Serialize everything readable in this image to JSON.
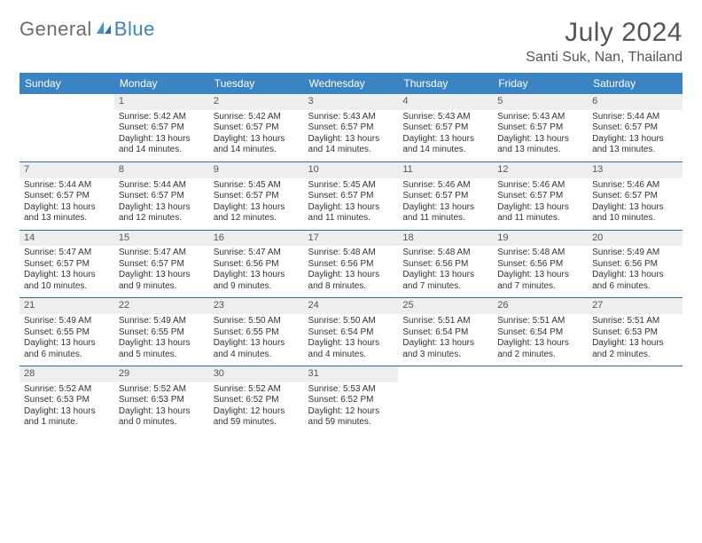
{
  "brand": {
    "part1": "General",
    "part2": "Blue"
  },
  "colors": {
    "header_bg": "#3b84c4",
    "header_text": "#ffffff",
    "rule": "#2f6da6",
    "daynum_bg": "#eeeeee",
    "text": "#333333",
    "muted": "#555555",
    "brand_gray": "#6d6d6d",
    "brand_blue": "#3b84c4",
    "page_bg": "#ffffff"
  },
  "title": {
    "month": "July 2024",
    "location": "Santi Suk, Nan, Thailand"
  },
  "weekdays": [
    "Sunday",
    "Monday",
    "Tuesday",
    "Wednesday",
    "Thursday",
    "Friday",
    "Saturday"
  ],
  "weeks": [
    [
      null,
      {
        "day": "1",
        "sunrise": "Sunrise: 5:42 AM",
        "sunset": "Sunset: 6:57 PM",
        "daylight1": "Daylight: 13 hours",
        "daylight2": "and 14 minutes."
      },
      {
        "day": "2",
        "sunrise": "Sunrise: 5:42 AM",
        "sunset": "Sunset: 6:57 PM",
        "daylight1": "Daylight: 13 hours",
        "daylight2": "and 14 minutes."
      },
      {
        "day": "3",
        "sunrise": "Sunrise: 5:43 AM",
        "sunset": "Sunset: 6:57 PM",
        "daylight1": "Daylight: 13 hours",
        "daylight2": "and 14 minutes."
      },
      {
        "day": "4",
        "sunrise": "Sunrise: 5:43 AM",
        "sunset": "Sunset: 6:57 PM",
        "daylight1": "Daylight: 13 hours",
        "daylight2": "and 14 minutes."
      },
      {
        "day": "5",
        "sunrise": "Sunrise: 5:43 AM",
        "sunset": "Sunset: 6:57 PM",
        "daylight1": "Daylight: 13 hours",
        "daylight2": "and 13 minutes."
      },
      {
        "day": "6",
        "sunrise": "Sunrise: 5:44 AM",
        "sunset": "Sunset: 6:57 PM",
        "daylight1": "Daylight: 13 hours",
        "daylight2": "and 13 minutes."
      }
    ],
    [
      {
        "day": "7",
        "sunrise": "Sunrise: 5:44 AM",
        "sunset": "Sunset: 6:57 PM",
        "daylight1": "Daylight: 13 hours",
        "daylight2": "and 13 minutes."
      },
      {
        "day": "8",
        "sunrise": "Sunrise: 5:44 AM",
        "sunset": "Sunset: 6:57 PM",
        "daylight1": "Daylight: 13 hours",
        "daylight2": "and 12 minutes."
      },
      {
        "day": "9",
        "sunrise": "Sunrise: 5:45 AM",
        "sunset": "Sunset: 6:57 PM",
        "daylight1": "Daylight: 13 hours",
        "daylight2": "and 12 minutes."
      },
      {
        "day": "10",
        "sunrise": "Sunrise: 5:45 AM",
        "sunset": "Sunset: 6:57 PM",
        "daylight1": "Daylight: 13 hours",
        "daylight2": "and 11 minutes."
      },
      {
        "day": "11",
        "sunrise": "Sunrise: 5:46 AM",
        "sunset": "Sunset: 6:57 PM",
        "daylight1": "Daylight: 13 hours",
        "daylight2": "and 11 minutes."
      },
      {
        "day": "12",
        "sunrise": "Sunrise: 5:46 AM",
        "sunset": "Sunset: 6:57 PM",
        "daylight1": "Daylight: 13 hours",
        "daylight2": "and 11 minutes."
      },
      {
        "day": "13",
        "sunrise": "Sunrise: 5:46 AM",
        "sunset": "Sunset: 6:57 PM",
        "daylight1": "Daylight: 13 hours",
        "daylight2": "and 10 minutes."
      }
    ],
    [
      {
        "day": "14",
        "sunrise": "Sunrise: 5:47 AM",
        "sunset": "Sunset: 6:57 PM",
        "daylight1": "Daylight: 13 hours",
        "daylight2": "and 10 minutes."
      },
      {
        "day": "15",
        "sunrise": "Sunrise: 5:47 AM",
        "sunset": "Sunset: 6:57 PM",
        "daylight1": "Daylight: 13 hours",
        "daylight2": "and 9 minutes."
      },
      {
        "day": "16",
        "sunrise": "Sunrise: 5:47 AM",
        "sunset": "Sunset: 6:56 PM",
        "daylight1": "Daylight: 13 hours",
        "daylight2": "and 9 minutes."
      },
      {
        "day": "17",
        "sunrise": "Sunrise: 5:48 AM",
        "sunset": "Sunset: 6:56 PM",
        "daylight1": "Daylight: 13 hours",
        "daylight2": "and 8 minutes."
      },
      {
        "day": "18",
        "sunrise": "Sunrise: 5:48 AM",
        "sunset": "Sunset: 6:56 PM",
        "daylight1": "Daylight: 13 hours",
        "daylight2": "and 7 minutes."
      },
      {
        "day": "19",
        "sunrise": "Sunrise: 5:48 AM",
        "sunset": "Sunset: 6:56 PM",
        "daylight1": "Daylight: 13 hours",
        "daylight2": "and 7 minutes."
      },
      {
        "day": "20",
        "sunrise": "Sunrise: 5:49 AM",
        "sunset": "Sunset: 6:56 PM",
        "daylight1": "Daylight: 13 hours",
        "daylight2": "and 6 minutes."
      }
    ],
    [
      {
        "day": "21",
        "sunrise": "Sunrise: 5:49 AM",
        "sunset": "Sunset: 6:55 PM",
        "daylight1": "Daylight: 13 hours",
        "daylight2": "and 6 minutes."
      },
      {
        "day": "22",
        "sunrise": "Sunrise: 5:49 AM",
        "sunset": "Sunset: 6:55 PM",
        "daylight1": "Daylight: 13 hours",
        "daylight2": "and 5 minutes."
      },
      {
        "day": "23",
        "sunrise": "Sunrise: 5:50 AM",
        "sunset": "Sunset: 6:55 PM",
        "daylight1": "Daylight: 13 hours",
        "daylight2": "and 4 minutes."
      },
      {
        "day": "24",
        "sunrise": "Sunrise: 5:50 AM",
        "sunset": "Sunset: 6:54 PM",
        "daylight1": "Daylight: 13 hours",
        "daylight2": "and 4 minutes."
      },
      {
        "day": "25",
        "sunrise": "Sunrise: 5:51 AM",
        "sunset": "Sunset: 6:54 PM",
        "daylight1": "Daylight: 13 hours",
        "daylight2": "and 3 minutes."
      },
      {
        "day": "26",
        "sunrise": "Sunrise: 5:51 AM",
        "sunset": "Sunset: 6:54 PM",
        "daylight1": "Daylight: 13 hours",
        "daylight2": "and 2 minutes."
      },
      {
        "day": "27",
        "sunrise": "Sunrise: 5:51 AM",
        "sunset": "Sunset: 6:53 PM",
        "daylight1": "Daylight: 13 hours",
        "daylight2": "and 2 minutes."
      }
    ],
    [
      {
        "day": "28",
        "sunrise": "Sunrise: 5:52 AM",
        "sunset": "Sunset: 6:53 PM",
        "daylight1": "Daylight: 13 hours",
        "daylight2": "and 1 minute."
      },
      {
        "day": "29",
        "sunrise": "Sunrise: 5:52 AM",
        "sunset": "Sunset: 6:53 PM",
        "daylight1": "Daylight: 13 hours",
        "daylight2": "and 0 minutes."
      },
      {
        "day": "30",
        "sunrise": "Sunrise: 5:52 AM",
        "sunset": "Sunset: 6:52 PM",
        "daylight1": "Daylight: 12 hours",
        "daylight2": "and 59 minutes."
      },
      {
        "day": "31",
        "sunrise": "Sunrise: 5:53 AM",
        "sunset": "Sunset: 6:52 PM",
        "daylight1": "Daylight: 12 hours",
        "daylight2": "and 59 minutes."
      },
      null,
      null,
      null
    ]
  ]
}
